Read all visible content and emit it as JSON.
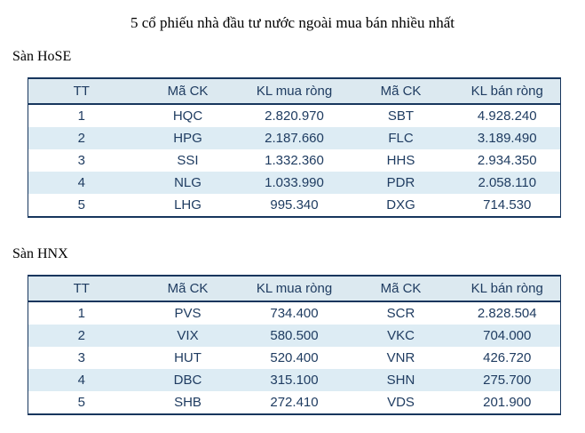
{
  "page": {
    "title": "5 cổ phiếu nhà đầu tư nước ngoài mua bán nhiều nhất"
  },
  "colors": {
    "table_text": "#1f3c61",
    "table_border": "#17365d",
    "header_bg": "#dce9f0",
    "stripe_bg": "#ddecf4",
    "page_bg": "#ffffff",
    "title_text": "#000000"
  },
  "sections": [
    {
      "label": "Sàn HoSE",
      "table": {
        "headers": [
          "TT",
          "Mã CK",
          "KL mua ròng",
          "Mã CK",
          "KL bán ròng"
        ],
        "rows": [
          [
            "1",
            "HQC",
            "2.820.970",
            "SBT",
            "4.928.240"
          ],
          [
            "2",
            "HPG",
            "2.187.660",
            "FLC",
            "3.189.490"
          ],
          [
            "3",
            "SSI",
            "1.332.360",
            "HHS",
            "2.934.350"
          ],
          [
            "4",
            "NLG",
            "1.033.990",
            "PDR",
            "2.058.110"
          ],
          [
            "5",
            "LHG",
            "995.340",
            "DXG",
            "714.530"
          ]
        ]
      }
    },
    {
      "label": "Sàn HNX",
      "table": {
        "headers": [
          "TT",
          "Mã CK",
          "KL mua ròng",
          "Mã CK",
          "KL bán ròng"
        ],
        "rows": [
          [
            "1",
            "PVS",
            "734.400",
            "SCR",
            "2.828.504"
          ],
          [
            "2",
            "VIX",
            "580.500",
            "VKC",
            "704.000"
          ],
          [
            "3",
            "HUT",
            "520.400",
            "VNR",
            "426.720"
          ],
          [
            "4",
            "DBC",
            "315.100",
            "SHN",
            "275.700"
          ],
          [
            "5",
            "SHB",
            "272.410",
            "VDS",
            "201.900"
          ]
        ]
      }
    }
  ]
}
